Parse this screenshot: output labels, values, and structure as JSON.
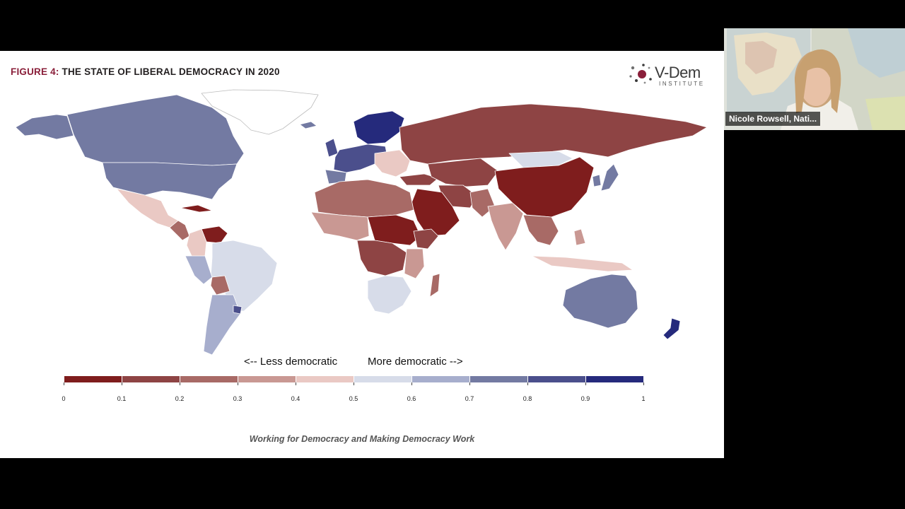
{
  "slide": {
    "figure_number": "FIGURE 4:",
    "figure_title": "THE STATE OF LIBERAL DEMOCRACY IN 2020",
    "logo": {
      "name": "V-Dem",
      "subtitle": "INSTITUTE"
    },
    "legend_left": "<-- Less democratic",
    "legend_right": "More democratic -->",
    "footer": "Working for Democracy and Making Democracy Work"
  },
  "participant": {
    "name": "Nicole Rowsell, Nati..."
  },
  "chart_data": {
    "type": "heatmap",
    "colorbar": {
      "min": 0,
      "max": 1,
      "step": 0.1,
      "ticks": [
        "0",
        "0.1",
        "0.2",
        "0.3",
        "0.4",
        "0.5",
        "0.6",
        "0.7",
        "0.8",
        "0.9",
        "1"
      ],
      "colors": [
        "#7f1d1d",
        "#8e4444",
        "#a86a66",
        "#c99893",
        "#eac9c4",
        "#d7dce9",
        "#a7aecd",
        "#737aa2",
        "#4b4f8c",
        "#252a7c"
      ]
    }
  }
}
